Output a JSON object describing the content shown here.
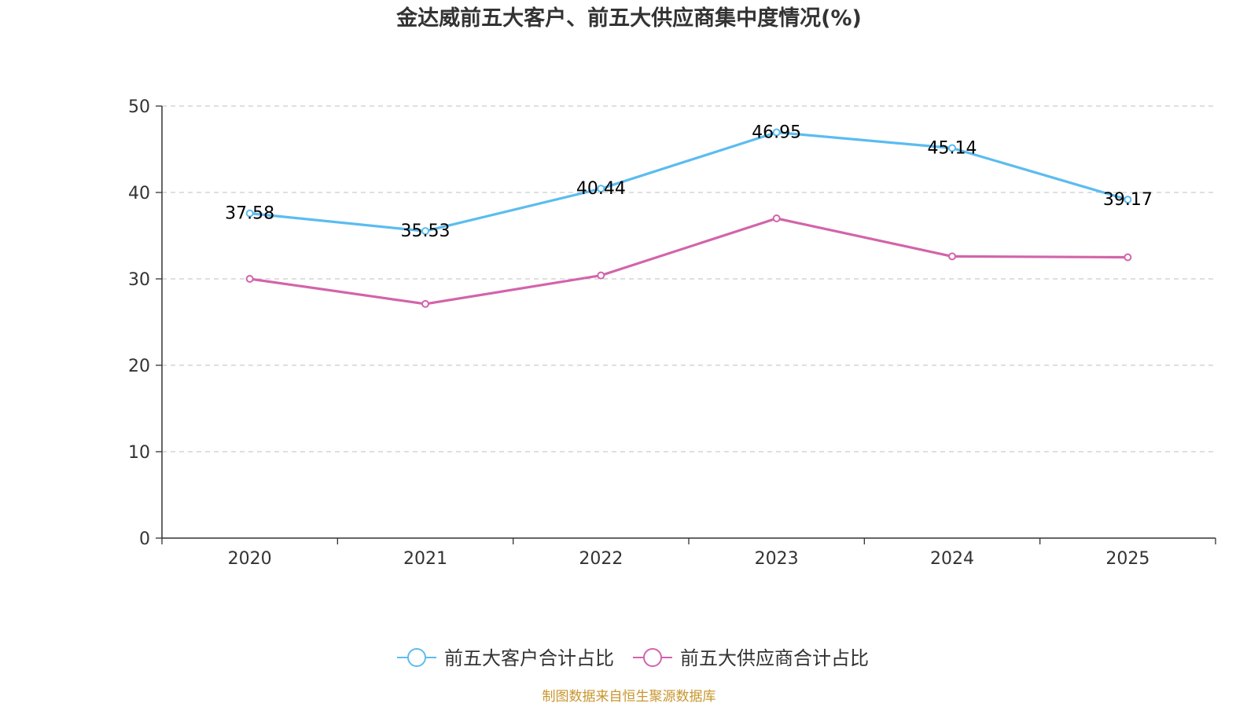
{
  "chart_data": {
    "type": "line",
    "title": "金达威前五大客户、前五大供应商集中度情况(%)",
    "xlabel": "",
    "ylabel": "",
    "categories": [
      "2020",
      "2021",
      "2022",
      "2023",
      "2024",
      "2025"
    ],
    "ylim": [
      0,
      50
    ],
    "yticks": [
      0,
      10,
      20,
      30,
      40,
      50
    ],
    "grid": true,
    "legend_position": "bottom-center",
    "series": [
      {
        "name": "前五大客户合计占比",
        "color": "#5bbcf0",
        "values": [
          37.58,
          35.53,
          40.44,
          46.95,
          45.14,
          39.17
        ],
        "labels": [
          "37.58",
          "35.53",
          "40.44",
          "46.95",
          "45.14",
          "39.17"
        ],
        "show_labels": true
      },
      {
        "name": "前五大供应商合计占比",
        "color": "#d264ab",
        "values": [
          30.0,
          27.1,
          30.4,
          37.0,
          32.6,
          32.5
        ],
        "show_labels": false
      }
    ]
  },
  "source": {
    "text": "制图数据来自恒生聚源数据库",
    "color": "#c8962e"
  }
}
